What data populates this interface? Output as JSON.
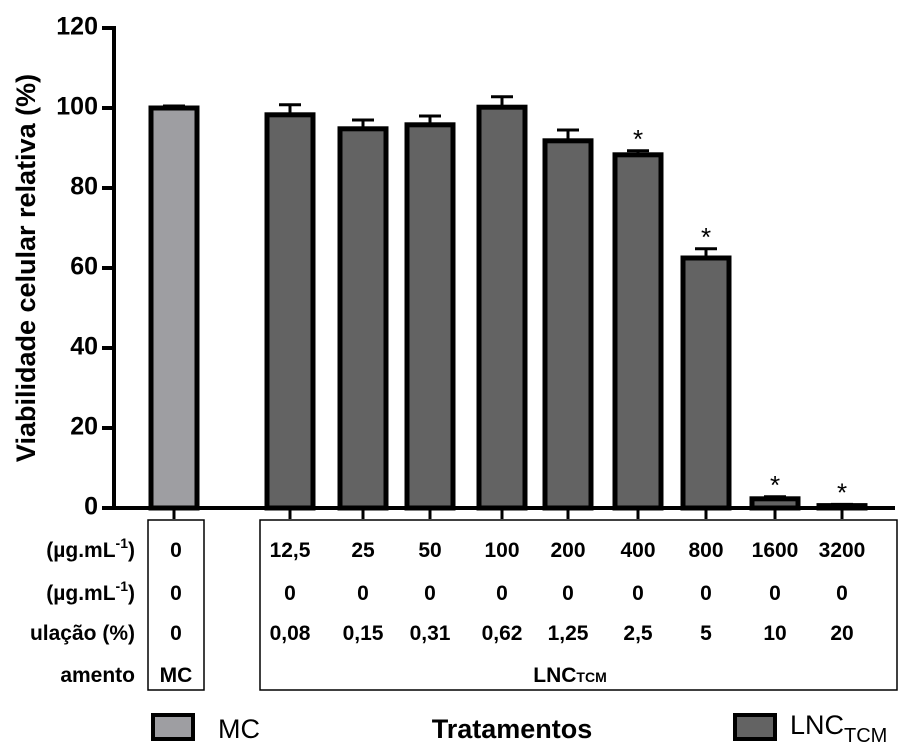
{
  "chart_data": {
    "type": "bar",
    "ylabel": "Viabilidade celular relativa (%)",
    "ylim": [
      0,
      120
    ],
    "yticks": [
      0,
      20,
      40,
      60,
      80,
      100,
      120
    ],
    "grid": false,
    "legend_position": "bottom",
    "legend_title": "Tratamentos",
    "legend": [
      {
        "label": "MC",
        "color": "#9e9ea2"
      },
      {
        "label_main": "LNC",
        "label_sub": "TCM",
        "color": "#636363"
      }
    ],
    "categories": [
      "MC-0",
      "12,5",
      "25",
      "50",
      "100",
      "200",
      "400",
      "800",
      "1600",
      "3200"
    ],
    "bars": [
      {
        "group": "MC",
        "value": 100,
        "error": 0.5,
        "significant": false,
        "color": "#9e9ea2"
      },
      {
        "group": "LNC",
        "value": 98.3,
        "error": 2.5,
        "significant": false,
        "color": "#636363"
      },
      {
        "group": "LNC",
        "value": 94.8,
        "error": 2.2,
        "significant": false,
        "color": "#636363"
      },
      {
        "group": "LNC",
        "value": 95.8,
        "error": 2.2,
        "significant": false,
        "color": "#636363"
      },
      {
        "group": "LNC",
        "value": 100.2,
        "error": 2.6,
        "significant": false,
        "color": "#636363"
      },
      {
        "group": "LNC",
        "value": 91.8,
        "error": 2.7,
        "significant": false,
        "color": "#636363"
      },
      {
        "group": "LNC",
        "value": 88.3,
        "error": 1.0,
        "significant": true,
        "color": "#636363"
      },
      {
        "group": "LNC",
        "value": 62.5,
        "error": 2.3,
        "significant": true,
        "color": "#636363"
      },
      {
        "group": "LNC",
        "value": 2.3,
        "error": 0.5,
        "significant": true,
        "color": "#636363"
      },
      {
        "group": "LNC",
        "value": 0.6,
        "error": 0.3,
        "significant": true,
        "color": "#636363"
      }
    ],
    "star_label": "*",
    "table": {
      "row_labels": [
        {
          "main": "(µg.mL",
          "sup": "-1",
          "end": ")"
        },
        {
          "main": "(µg.mL",
          "sup": "-1",
          "end": ")"
        },
        {
          "main": "ulação (%)",
          "sup": "",
          "end": ""
        },
        {
          "main": "amento",
          "sup": "",
          "end": ""
        }
      ],
      "mc_column": [
        "0",
        "0",
        "0",
        "MC"
      ],
      "lnc_rows": [
        [
          "12,5",
          "25",
          "50",
          "100",
          "200",
          "400",
          "800",
          "1600",
          "3200"
        ],
        [
          "0",
          "0",
          "0",
          "0",
          "0",
          "0",
          "0",
          "0",
          "0"
        ],
        [
          "0,08",
          "0,15",
          "0,31",
          "0,62",
          "1,25",
          "2,5",
          "5",
          "10",
          "20"
        ]
      ],
      "lnc_group_label_main": "LNC",
      "lnc_group_label_sub": "TCM"
    }
  }
}
